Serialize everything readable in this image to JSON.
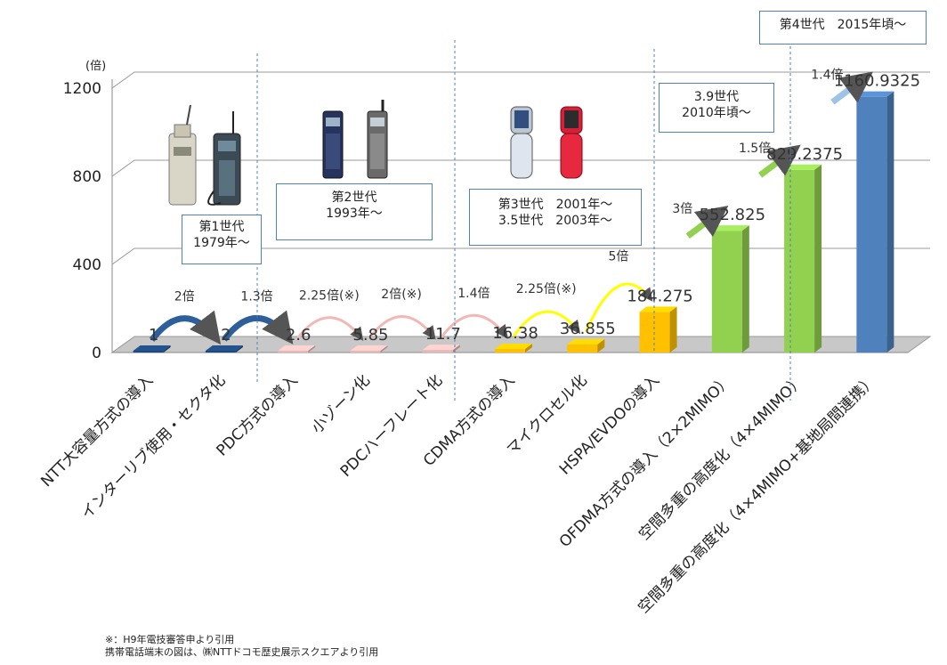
{
  "chart_data": {
    "type": "bar",
    "ylabel": "(倍)",
    "ylim": [
      0,
      1200
    ],
    "yticks": [
      0,
      400,
      800,
      1200
    ],
    "grid": true,
    "categories": [
      "NTT大容量方式の導入",
      "インターリブ使用・セクタ化",
      "PDC方式の導入",
      "小ゾーン化",
      "PDCハーフレート化",
      "CDMA方式の導入",
      "マイクロセル化",
      "HSPA/EVDOの導入",
      "OFDMA方式の導入（2×2MIMO）",
      "空間多重の高度化（4×4MIMO）",
      "空間多重の高度化（4×4MIMO+基地局間連携）"
    ],
    "values": [
      1,
      2,
      2.6,
      5.85,
      11.7,
      16.38,
      36.855,
      184.275,
      552.825,
      829.2375,
      1160.9325
    ],
    "value_labels": [
      "1",
      "2",
      "2.6",
      "5.85",
      "11.7",
      "16.38",
      "36.855",
      "184.275",
      "552.825",
      "829.2375",
      "1160.9325"
    ],
    "bar_colors": [
      "#1f497d",
      "#1f497d",
      "#e6b8b7",
      "#e6b8b7",
      "#e6b8b7",
      "#ffc000",
      "#ffc000",
      "#ffc000",
      "#92d050",
      "#92d050",
      "#4f81bd"
    ],
    "multipliers": [
      {
        "label": "2倍",
        "color": "#2e5f9a"
      },
      {
        "label": "1.3倍",
        "color": "#2e5f9a"
      },
      {
        "label": "2.25倍(※)",
        "color": "#f2b8b5"
      },
      {
        "label": "2倍(※)",
        "color": "#f2b8b5"
      },
      {
        "label": "1.4倍",
        "color": "#f2b8b5"
      },
      {
        "label": "2.25倍(※)",
        "color": "#ffff00"
      },
      {
        "label": "5倍",
        "color": "#ffff00"
      },
      {
        "label": "3倍",
        "color": "#92d050"
      },
      {
        "label": "1.5倍",
        "color": "#92d050"
      },
      {
        "label": "1.4倍",
        "color": "#9dc3e6"
      }
    ]
  },
  "generations": {
    "gen1": {
      "line1": "第1世代",
      "line2": "1979年～"
    },
    "gen2": {
      "line1": "第2世代",
      "line2": "1993年～"
    },
    "gen3": {
      "line1": "第3世代　2001年～",
      "line2": "3.5世代　2003年～"
    },
    "gen39": {
      "line1": "3.9世代",
      "line2": "2010年頃～"
    },
    "gen4": {
      "line1": "第4世代　2015年頃～"
    }
  },
  "notes": {
    "line1": "※：H9年電技審答申より引用",
    "line2": "携帯電話端末の図は、㈱NTTドコモ歴史展示スクエアより引用"
  }
}
